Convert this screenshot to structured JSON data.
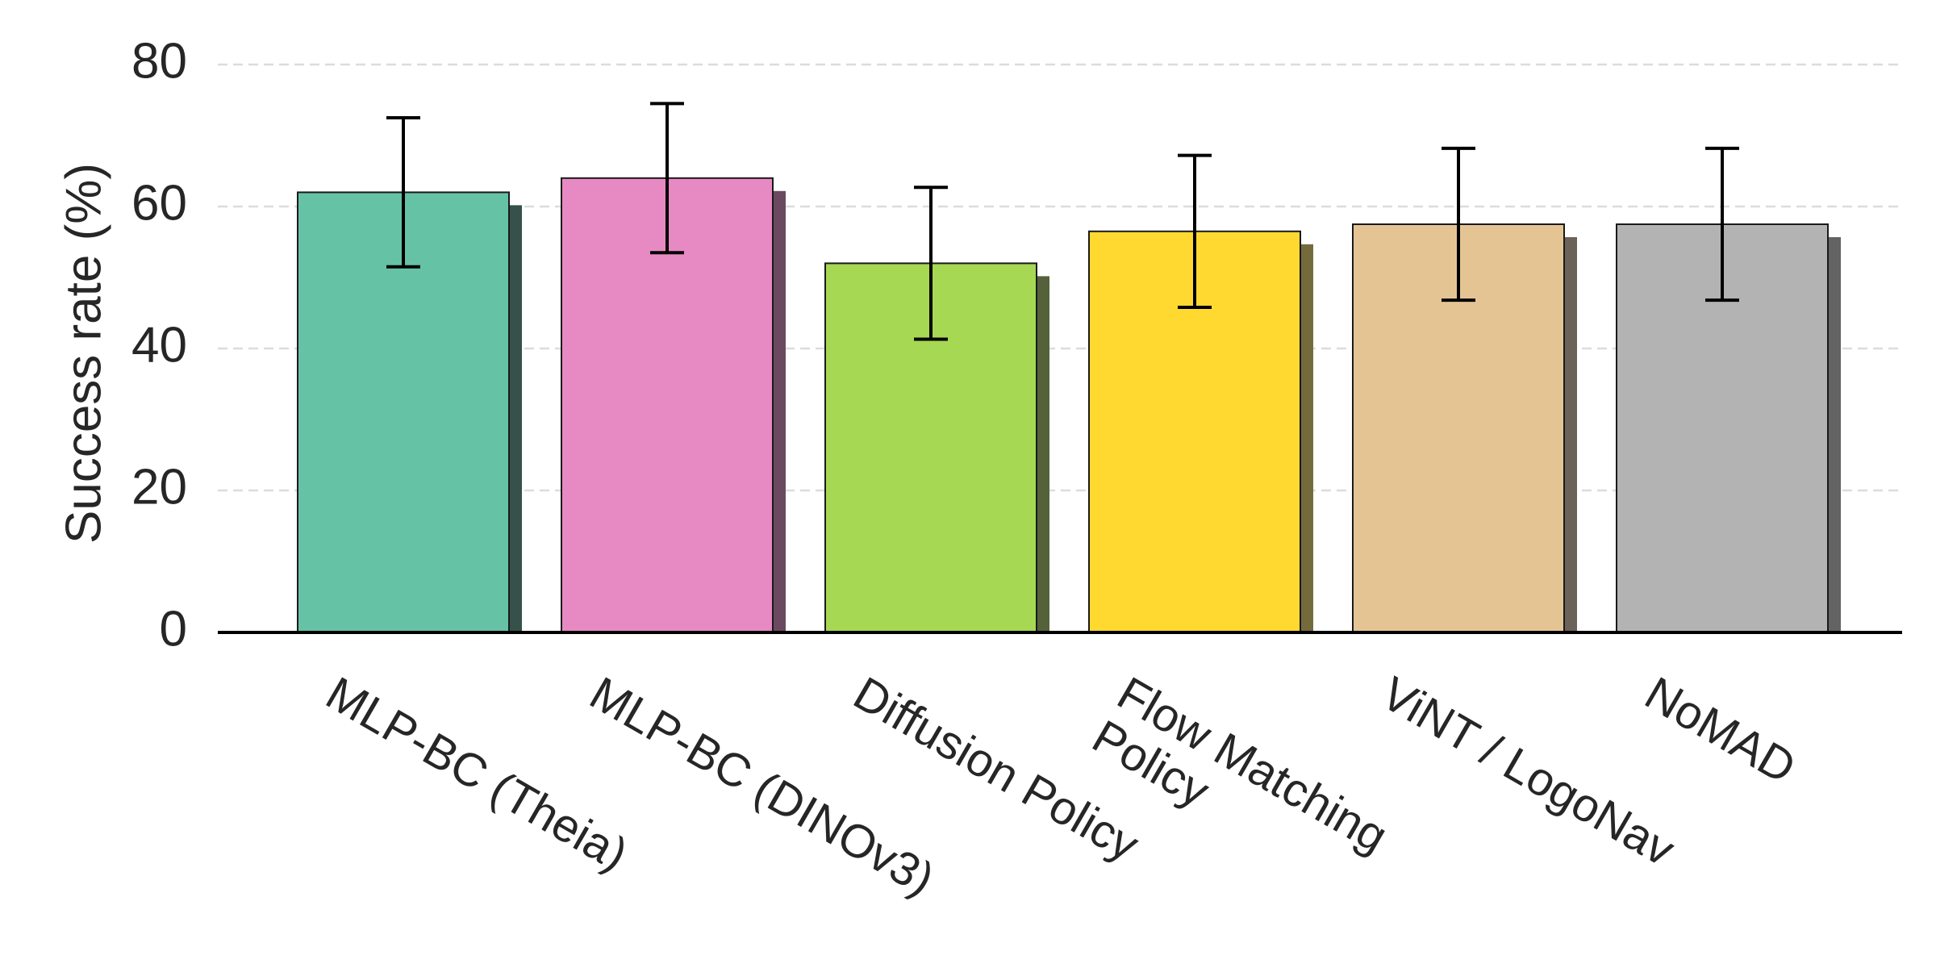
{
  "chart_data": {
    "type": "bar",
    "title": "",
    "xlabel": "",
    "ylabel": "Success rate (%)",
    "ylim": [
      0,
      80
    ],
    "yticks": [
      0,
      20,
      40,
      60,
      80
    ],
    "grid": "horizontal-dashed",
    "categories": [
      [
        "MLP-BC (Theia)"
      ],
      [
        "MLP-BC (DINOv3)"
      ],
      [
        "Diffusion Policy"
      ],
      [
        "Flow Matching",
        "Policy"
      ],
      [
        "ViNT / LogoNav"
      ],
      [
        "NoMAD"
      ]
    ],
    "values": [
      62,
      64,
      52,
      56.5,
      57.5,
      57.5
    ],
    "error": [
      10.5,
      10.5,
      10.7,
      10.7,
      10.7,
      10.7
    ],
    "colors": [
      "#66c2a5",
      "#e78ac3",
      "#a6d854",
      "#ffd92f",
      "#e5c494",
      "#b3b3b3"
    ],
    "shadow_colors": [
      "#35514a",
      "#6b4a60",
      "#54613a",
      "#756a3c",
      "#6b6259",
      "#636363"
    ]
  }
}
